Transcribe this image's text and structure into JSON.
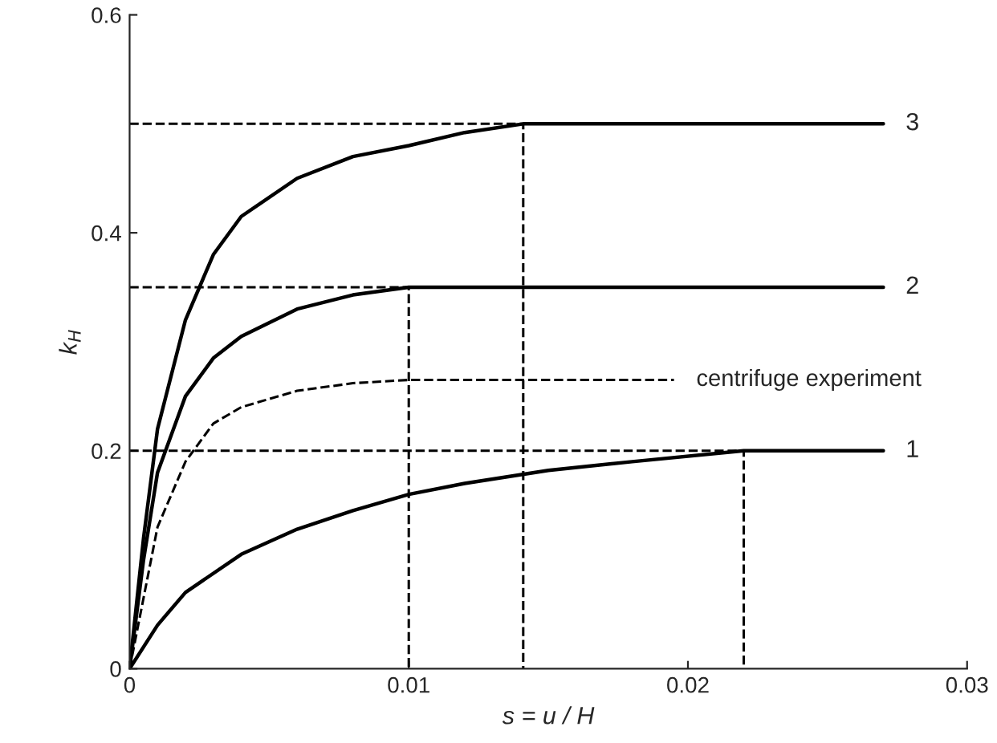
{
  "chart_data": {
    "type": "line",
    "xlabel": "s = u / H",
    "ylabel": "k$_{H}$",
    "xlim": [
      0,
      0.03
    ],
    "ylim": [
      0,
      0.6
    ],
    "xticks": [
      0,
      0.01,
      0.02,
      0.03
    ],
    "yticks": [
      0,
      0.2,
      0.4,
      0.6
    ],
    "grid": false,
    "legend": false,
    "marker": "none",
    "line_style": "solid",
    "series": [
      {
        "name": "3",
        "color": "#000000",
        "x": [
          0,
          0.0005,
          0.001,
          0.002,
          0.003,
          0.004,
          0.006,
          0.008,
          0.01,
          0.012,
          0.0141,
          0.027
        ],
        "values": [
          0,
          0.12,
          0.22,
          0.32,
          0.38,
          0.415,
          0.45,
          0.47,
          0.48,
          0.492,
          0.5,
          0.5
        ]
      },
      {
        "name": "2",
        "color": "#000000",
        "x": [
          0,
          0.0005,
          0.001,
          0.002,
          0.003,
          0.004,
          0.006,
          0.008,
          0.01,
          0.027
        ],
        "values": [
          0,
          0.1,
          0.18,
          0.25,
          0.285,
          0.305,
          0.33,
          0.343,
          0.35,
          0.35
        ]
      },
      {
        "name": "centrifuge experiment",
        "color": "#000000",
        "line_style": "dashed",
        "x": [
          0,
          0.001,
          0.002,
          0.003,
          0.004,
          0.006,
          0.008,
          0.01,
          0.0195
        ],
        "values": [
          0,
          0.13,
          0.19,
          0.225,
          0.24,
          0.255,
          0.262,
          0.265,
          0.265
        ]
      },
      {
        "name": "1",
        "color": "#000000",
        "x": [
          0,
          0.001,
          0.002,
          0.004,
          0.006,
          0.008,
          0.01,
          0.012,
          0.015,
          0.018,
          0.022,
          0.027
        ],
        "values": [
          0,
          0.04,
          0.07,
          0.105,
          0.128,
          0.145,
          0.16,
          0.17,
          0.182,
          0.19,
          0.2,
          0.2
        ]
      },
      {
        "color": "#000000",
        "line_style": "dashed",
        "x": [
          0,
          0.0141,
          0.0141
        ],
        "values": [
          0.5,
          0.5,
          0
        ]
      },
      {
        "color": "#000000",
        "line_style": "dashed",
        "x": [
          0,
          0.01,
          0.01
        ],
        "values": [
          0.35,
          0.35,
          0
        ]
      },
      {
        "color": "#000000",
        "line_style": "dashed",
        "x": [
          0,
          0.022,
          0.022
        ],
        "values": [
          0.2,
          0.2,
          0
        ]
      }
    ]
  }
}
